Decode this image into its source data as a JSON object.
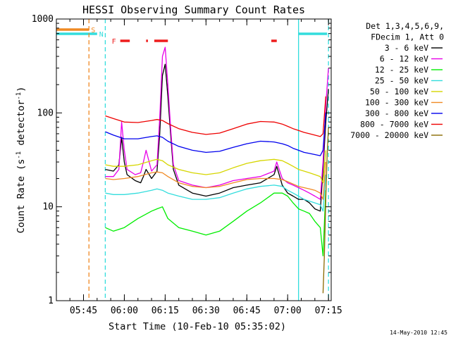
{
  "chart_data": {
    "type": "line",
    "title": "HESSI Observing Summary Count Rates",
    "xlabel": "Start Time (10-Feb-10 05:35:02)",
    "ylabel_main": "Count Rate (s",
    "ylabel_sup1": "-1",
    "ylabel_mid": " detector",
    "ylabel_sup2": "-1",
    "ylabel_end": ")",
    "y_scale": "log",
    "ylim": [
      1,
      1000
    ],
    "xlim": [
      "05:35:02",
      "07:16:00"
    ],
    "x_ticks": [
      "05:45",
      "06:00",
      "06:15",
      "06:30",
      "06:45",
      "07:00",
      "07:15"
    ],
    "y_ticks": [
      "1",
      "10",
      "100",
      "1000"
    ],
    "legend_header": [
      "Det 1,3,4,5,6,9,",
      "FDecim 1, Att 0"
    ],
    "legend_placement": "right",
    "timestamp": "14-May-2010 12:45",
    "flags": [
      {
        "label": "S",
        "color": "#f08a24",
        "start": "05:35:02",
        "end": "05:47:00"
      },
      {
        "label": "N",
        "color": "#33dddd",
        "start": "05:35:02",
        "end": "05:50:00"
      },
      {
        "label": "N",
        "color": "#33dddd",
        "start": "07:04:00",
        "end": "07:14:30"
      }
    ],
    "flare_flag": {
      "label": "F",
      "color": "#ee1c1c",
      "intervals": [
        [
          "05:58:30",
          "06:02:00"
        ],
        [
          "06:08:00",
          "06:08:40"
        ],
        [
          "06:11:00",
          "06:16:00"
        ],
        [
          "06:54:00",
          "06:56:00"
        ]
      ]
    },
    "vlines": [
      {
        "time": "05:47:00",
        "color": "#f08a24",
        "style": "dashed"
      },
      {
        "time": "05:53:00",
        "color": "#33dddd",
        "style": "dashed"
      },
      {
        "time": "07:04:00",
        "color": "#33dddd",
        "style": "solid"
      },
      {
        "time": "07:15:00",
        "color": "#33dddd",
        "style": "dashed"
      }
    ],
    "series": [
      {
        "name": "3 - 6 keV",
        "color": "#000000",
        "x": [
          "05:53",
          "05:56",
          "05:58",
          "05:59",
          "06:00",
          "06:01",
          "06:04",
          "06:06",
          "06:07",
          "06:08",
          "06:10",
          "06:12",
          "06:13",
          "06:14",
          "06:15",
          "06:16",
          "06:17",
          "06:18",
          "06:20",
          "06:25",
          "06:30",
          "06:35",
          "06:40",
          "06:45",
          "06:50",
          "06:55",
          "06:56",
          "06:58",
          "07:00",
          "07:02",
          "07:04",
          "07:06",
          "07:08",
          "07:10",
          "07:12",
          "07:13",
          "07:14",
          "07:15"
        ],
        "y": [
          25,
          24,
          28,
          55,
          30,
          22,
          19,
          18,
          21,
          25,
          20,
          24,
          60,
          250,
          330,
          150,
          60,
          25,
          17,
          14,
          13,
          14,
          16,
          17,
          18,
          22,
          27,
          17,
          14,
          13,
          12,
          12,
          11,
          9.5,
          9,
          25,
          80,
          180
        ]
      },
      {
        "name": "6 - 12 keV",
        "color": "#e800e8",
        "x": [
          "05:53",
          "05:56",
          "05:58",
          "05:59",
          "06:00",
          "06:01",
          "06:04",
          "06:06",
          "06:07",
          "06:08",
          "06:10",
          "06:12",
          "06:13",
          "06:14",
          "06:15",
          "06:16",
          "06:17",
          "06:18",
          "06:20",
          "06:25",
          "06:30",
          "06:35",
          "06:40",
          "06:45",
          "06:50",
          "06:55",
          "06:56",
          "06:58",
          "07:00",
          "07:02",
          "07:04",
          "07:06",
          "07:08",
          "07:10",
          "07:12",
          "07:13",
          "07:14",
          "07:15"
        ],
        "y": [
          21,
          21,
          25,
          80,
          40,
          25,
          22,
          23,
          30,
          40,
          24,
          28,
          90,
          400,
          500,
          200,
          70,
          28,
          19,
          17,
          16,
          17,
          19,
          20,
          21,
          24,
          30,
          20,
          18,
          17,
          16,
          15,
          14,
          13,
          12,
          30,
          120,
          300
        ]
      },
      {
        "name": "12 - 25 keV",
        "color": "#00ee00",
        "x": [
          "05:53",
          "05:56",
          "06:00",
          "06:05",
          "06:10",
          "06:12",
          "06:14",
          "06:16",
          "06:20",
          "06:25",
          "06:30",
          "06:35",
          "06:40",
          "06:45",
          "06:50",
          "06:55",
          "06:58",
          "07:00",
          "07:02",
          "07:04",
          "07:06",
          "07:08",
          "07:10",
          "07:12",
          "07:13",
          "07:14"
        ],
        "y": [
          6,
          5.5,
          6,
          7.5,
          9,
          9.5,
          10,
          7.5,
          6,
          5.5,
          5,
          5.5,
          7,
          9,
          11,
          14,
          14,
          13,
          11,
          9.5,
          9,
          8.5,
          7,
          6,
          3,
          15
        ]
      },
      {
        "name": "25 - 50 keV",
        "color": "#33dddd",
        "x": [
          "05:53",
          "05:56",
          "06:00",
          "06:05",
          "06:10",
          "06:12",
          "06:14",
          "06:16",
          "06:20",
          "06:25",
          "06:30",
          "06:35",
          "06:40",
          "06:45",
          "06:50",
          "06:55",
          "06:58",
          "07:00",
          "07:02",
          "07:04",
          "07:06",
          "07:08",
          "07:10",
          "07:12",
          "07:13",
          "07:14"
        ],
        "y": [
          14,
          13.5,
          13.5,
          14,
          15,
          15.5,
          15,
          14,
          13,
          12,
          12,
          12.5,
          14,
          15.5,
          16.5,
          17,
          16.5,
          15,
          14,
          13,
          12,
          11.5,
          11,
          10.5,
          9,
          22
        ]
      },
      {
        "name": "50 - 100 keV",
        "color": "#d6d600",
        "x": [
          "05:53",
          "05:56",
          "06:00",
          "06:05",
          "06:10",
          "06:12",
          "06:14",
          "06:16",
          "06:20",
          "06:25",
          "06:30",
          "06:35",
          "06:40",
          "06:45",
          "06:50",
          "06:55",
          "06:58",
          "07:00",
          "07:02",
          "07:04",
          "07:06",
          "07:08",
          "07:10",
          "07:12",
          "07:13",
          "07:14"
        ],
        "y": [
          28,
          27,
          27,
          28,
          31,
          32,
          31,
          28,
          25,
          23,
          22,
          23,
          26,
          29,
          31,
          32,
          31,
          29,
          27,
          25,
          24,
          23,
          22,
          21,
          18,
          40
        ]
      },
      {
        "name": "100 - 300 keV",
        "color": "#f08a24",
        "x": [
          "05:53",
          "05:56",
          "06:00",
          "06:05",
          "06:10",
          "06:12",
          "06:14",
          "06:16",
          "06:20",
          "06:25",
          "06:30",
          "06:35",
          "06:40",
          "06:45",
          "06:50",
          "06:55",
          "06:58",
          "07:00",
          "07:02",
          "07:04",
          "07:06",
          "07:08",
          "07:10",
          "07:12",
          "07:13",
          "07:14"
        ],
        "y": [
          20,
          19.5,
          20,
          21,
          23,
          23.5,
          23,
          21,
          18,
          16.5,
          16,
          16.5,
          18,
          19.5,
          20,
          20,
          19.5,
          18.5,
          17.5,
          16.5,
          16,
          15.5,
          15,
          14,
          12,
          30
        ]
      },
      {
        "name": "300 - 800 keV",
        "color": "#0000ee",
        "x": [
          "05:53",
          "05:56",
          "06:00",
          "06:05",
          "06:10",
          "06:12",
          "06:14",
          "06:16",
          "06:20",
          "06:25",
          "06:30",
          "06:35",
          "06:40",
          "06:45",
          "06:50",
          "06:55",
          "06:58",
          "07:00",
          "07:02",
          "07:04",
          "07:06",
          "07:08",
          "07:10",
          "07:12",
          "07:13",
          "07:14"
        ],
        "y": [
          63,
          58,
          53,
          53,
          56,
          57,
          55,
          50,
          44,
          40,
          38,
          39,
          43,
          47,
          50,
          49,
          47,
          45,
          42,
          40,
          38,
          37,
          36,
          35,
          40,
          100
        ]
      },
      {
        "name": "800 - 7000 keV",
        "color": "#ee0000",
        "x": [
          "05:53",
          "05:56",
          "06:00",
          "06:05",
          "06:10",
          "06:12",
          "06:14",
          "06:16",
          "06:20",
          "06:25",
          "06:30",
          "06:35",
          "06:40",
          "06:45",
          "06:50",
          "06:55",
          "06:58",
          "07:00",
          "07:02",
          "07:04",
          "07:06",
          "07:08",
          "07:10",
          "07:12",
          "07:13",
          "07:14"
        ],
        "y": [
          93,
          87,
          80,
          79,
          83,
          85,
          83,
          77,
          68,
          62,
          59,
          61,
          68,
          76,
          81,
          80,
          76,
          72,
          68,
          65,
          62,
          60,
          58,
          56,
          60,
          150
        ]
      },
      {
        "name": "7000 - 20000 keV",
        "color": "#8a6a00",
        "x": [
          "07:13:00",
          "07:13:30",
          "07:14:00",
          "07:14:30",
          "07:15:00"
        ],
        "y": [
          1.2,
          3,
          12,
          35,
          70
        ]
      }
    ]
  }
}
